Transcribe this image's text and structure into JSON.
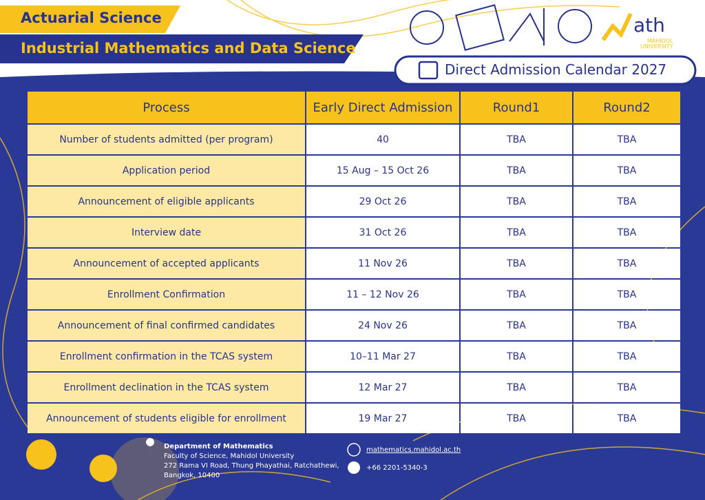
{
  "header": {
    "tag_primary": "Actuarial Science",
    "tag_secondary": "Industrial Mathematics and Data Science",
    "calendar_title": "Direct Admission Calendar 2027",
    "logo_text": "ath",
    "logo_sub_1": "MAHIDOL",
    "logo_sub_2": "UNIVERSITY"
  },
  "table": {
    "columns": [
      "Process",
      "Early Direct Admission",
      "Round1",
      "Round2"
    ],
    "rows": [
      [
        "Number of students admitted (per program)",
        "40",
        "TBA",
        "TBA"
      ],
      [
        "Application period",
        "15 Aug – 15 Oct 26",
        "TBA",
        "TBA"
      ],
      [
        "Announcement of eligible applicants",
        "29 Oct 26",
        "TBA",
        "TBA"
      ],
      [
        "Interview date",
        "31 Oct 26",
        "TBA",
        "TBA"
      ],
      [
        "Announcement of accepted applicants",
        "11 Nov 26",
        "TBA",
        "TBA"
      ],
      [
        "Enrollment Confirmation",
        "11 – 12 Nov 26",
        "TBA",
        "TBA"
      ],
      [
        "Announcement of final confirmed candidates",
        "24 Nov 26",
        "TBA",
        "TBA"
      ],
      [
        "Enrollment confirmation in the TCAS system",
        "10–11 Mar 27",
        "TBA",
        "TBA"
      ],
      [
        "Enrollment declination in the TCAS system",
        "12 Mar 27",
        "TBA",
        "TBA"
      ],
      [
        "Announcement of students eligible for enrollment",
        "19 Mar 27",
        "TBA",
        "TBA"
      ]
    ]
  },
  "footer": {
    "department": "Department of Mathematics",
    "address": [
      "Faculty of Science, Mahidol University",
      "272 Rama VI Road, Thung Phayathai, Ratchathewi,",
      "Bangkok, 10400"
    ],
    "website": "mathematics.mahidol.ac.th",
    "phone": "+66 2201-5340-3"
  }
}
